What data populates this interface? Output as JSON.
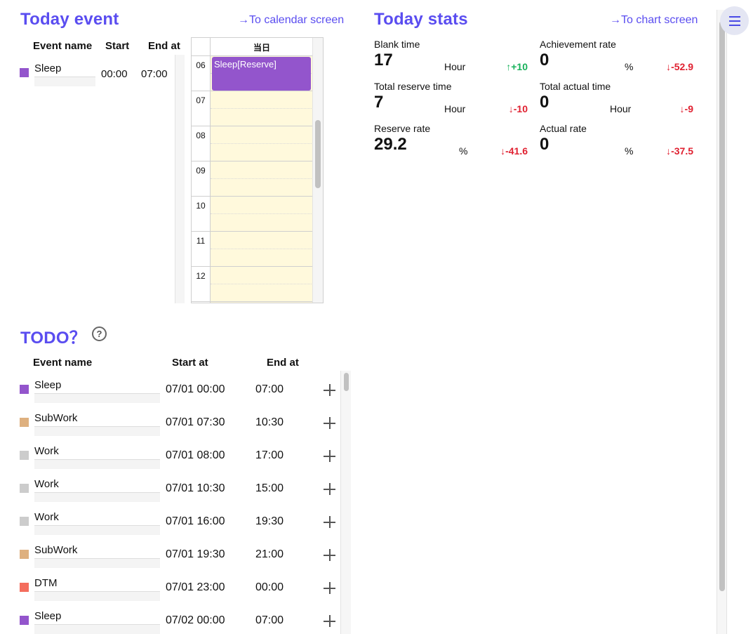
{
  "today_event": {
    "title": "Today event",
    "calendar_link": "→To calendar screen",
    "headers": {
      "name": "Event name",
      "start": "Start",
      "end": "End at"
    },
    "events": [
      {
        "name": "Sleep",
        "start": "00:00",
        "end": "07:00",
        "color": "#9355cc"
      }
    ]
  },
  "calendar": {
    "day_header": "当日",
    "hours": [
      "06",
      "07",
      "08",
      "09",
      "10",
      "11",
      "12"
    ],
    "event_label": "Sleep[Reserve]",
    "event_color": "#9355cc",
    "slot_color": "#fff9dc"
  },
  "today_stats": {
    "title": "Today stats",
    "chart_link": "→To chart screen",
    "items": [
      {
        "label": "Blank time",
        "value": "17",
        "unit": "Hour",
        "delta": "↑+10",
        "trend": "up"
      },
      {
        "label": "Achievement rate",
        "value": "0",
        "unit": "%",
        "delta": "↓-52.9",
        "trend": "down"
      },
      {
        "label": "Total reserve time",
        "value": "7",
        "unit": "Hour",
        "delta": "↓-10",
        "trend": "down"
      },
      {
        "label": "Total actual time",
        "value": "0",
        "unit": "Hour",
        "delta": "↓-9",
        "trend": "down"
      },
      {
        "label": "Reserve rate",
        "value": "29.2",
        "unit": "%",
        "delta": "↓-41.6",
        "trend": "down"
      },
      {
        "label": "Actual rate",
        "value": "0",
        "unit": "%",
        "delta": "↓-37.5",
        "trend": "down"
      }
    ]
  },
  "todo": {
    "title": "TODO？",
    "help_icon": "?",
    "headers": {
      "name": "Event name",
      "start": "Start at",
      "end": "End at"
    },
    "rows": [
      {
        "name": "Sleep",
        "start": "07/01 00:00",
        "end": "07:00",
        "color": "#9355cc"
      },
      {
        "name": "SubWork",
        "start": "07/01 07:30",
        "end": "10:30",
        "color": "#deb07f"
      },
      {
        "name": "Work",
        "start": "07/01 08:00",
        "end": "17:00",
        "color": "#cccccc"
      },
      {
        "name": "Work",
        "start": "07/01 10:30",
        "end": "15:00",
        "color": "#cccccc"
      },
      {
        "name": "Work",
        "start": "07/01 16:00",
        "end": "19:30",
        "color": "#cccccc"
      },
      {
        "name": "SubWork",
        "start": "07/01 19:30",
        "end": "21:00",
        "color": "#deb07f"
      },
      {
        "name": "DTM",
        "start": "07/01 23:00",
        "end": "00:00",
        "color": "#f46d5d"
      },
      {
        "name": "Sleep",
        "start": "07/02 00:00",
        "end": "07:00",
        "color": "#9355cc"
      }
    ]
  },
  "colors": {
    "accent": "#5a4df0",
    "up": "#17b15a",
    "down": "#e02030"
  },
  "icons": {
    "menu": "hamburger-menu-icon",
    "add": "plus-icon",
    "help": "question-circle-icon"
  }
}
